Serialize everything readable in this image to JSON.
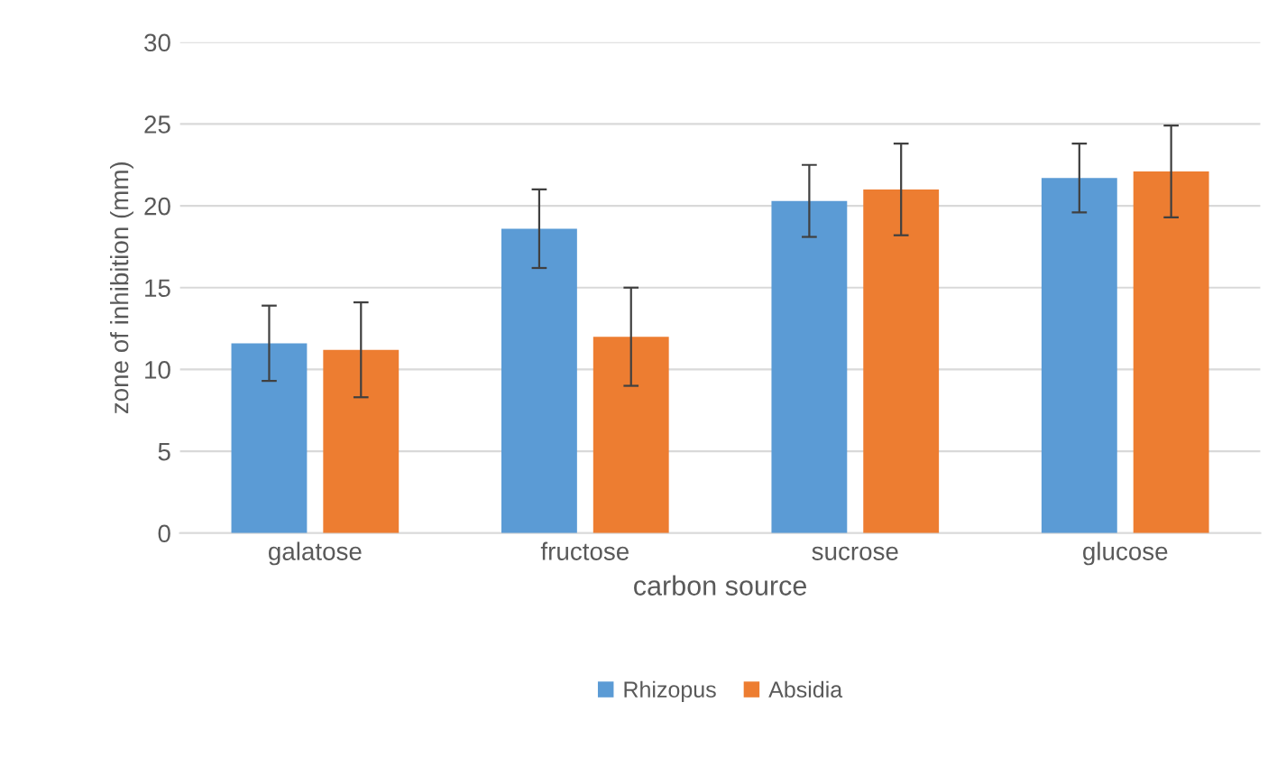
{
  "chart_data": {
    "type": "bar",
    "xlabel": "carbon source",
    "ylabel": "zone of inhibition (mm)",
    "categories": [
      "galatose",
      "fructose",
      "sucrose",
      "glucose"
    ],
    "series": [
      {
        "name": "Rhizopus",
        "color": "#5b9bd5",
        "values": [
          11.6,
          18.6,
          20.3,
          21.7
        ],
        "errors": [
          2.3,
          2.4,
          2.2,
          2.1
        ]
      },
      {
        "name": "Absidia",
        "color": "#ed7d31",
        "values": [
          11.2,
          12.0,
          21.0,
          22.1
        ],
        "errors": [
          2.9,
          3.0,
          2.8,
          2.8
        ]
      }
    ],
    "ylim": [
      0,
      30
    ],
    "yticks": [
      0,
      5,
      10,
      15,
      20,
      25,
      30
    ],
    "grid": "y",
    "legend": "bottom"
  }
}
